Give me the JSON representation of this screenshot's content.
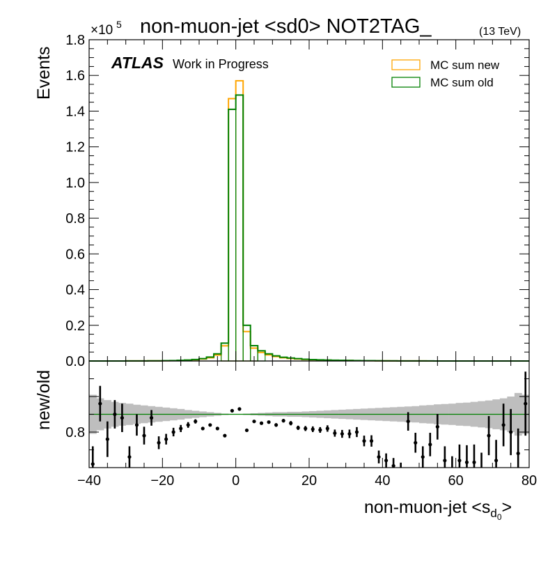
{
  "chart_data": [
    {
      "type": "step-histogram",
      "title": "non-muon-jet <sd0> NOT2TAG_",
      "title_suffix": "(13 TeV)",
      "experiment_label": "ATLAS",
      "experiment_sublabel": "Work in Progress",
      "ylabel": "Events",
      "y_multiplier": "×10",
      "y_multiplier_exponent": "5",
      "ylim": [
        0,
        1.8
      ],
      "y_ticks": [
        "0.0",
        "0.2",
        "0.4",
        "0.6",
        "0.8",
        "1.0",
        "1.2",
        "1.4",
        "1.6",
        "1.8"
      ],
      "xlim": [
        -40,
        80
      ],
      "legend_position": "top-right",
      "bin_edges": [
        -40,
        -38,
        -36,
        -34,
        -32,
        -30,
        -28,
        -26,
        -24,
        -22,
        -20,
        -18,
        -16,
        -14,
        -12,
        -10,
        -8,
        -6,
        -4,
        -2,
        0,
        2,
        4,
        6,
        8,
        10,
        12,
        14,
        16,
        18,
        20,
        22,
        24,
        26,
        28,
        30,
        32,
        34,
        36,
        38,
        40,
        42,
        44,
        46,
        48,
        50,
        52,
        54,
        56,
        58,
        60,
        62,
        64,
        66,
        68,
        70,
        72,
        74,
        76,
        78,
        80
      ],
      "series": [
        {
          "name": "MC sum new",
          "color": "#FFA500",
          "values": [
            0.0001,
            0.0001,
            0.0001,
            0.0002,
            0.0002,
            0.0003,
            0.0004,
            0.0005,
            0.0008,
            0.001,
            0.0014,
            0.002,
            0.003,
            0.0045,
            0.007,
            0.011,
            0.018,
            0.033,
            0.085,
            1.47,
            1.57,
            0.165,
            0.072,
            0.048,
            0.034,
            0.025,
            0.018,
            0.014,
            0.011,
            0.0085,
            0.0068,
            0.0055,
            0.0045,
            0.0038,
            0.0032,
            0.0027,
            0.0022,
            0.0018,
            0.0014,
            0.0011,
            0.0008,
            0.0006,
            0.0005,
            0.0004,
            0.0003,
            0.0003,
            0.0002,
            0.0002,
            0.0001,
            0.0001,
            0.0001,
            0.0001,
            0.0001,
            0.0001,
            0.0001,
            0.0001,
            0.0,
            0.0,
            0.0,
            0.0
          ]
        },
        {
          "name": "MC sum old",
          "color": "#008000",
          "values": [
            0.0001,
            0.0001,
            0.0001,
            0.0002,
            0.0002,
            0.0003,
            0.0005,
            0.0006,
            0.0009,
            0.0012,
            0.0017,
            0.0025,
            0.0037,
            0.0055,
            0.0085,
            0.013,
            0.022,
            0.04,
            0.1,
            1.41,
            1.49,
            0.2,
            0.086,
            0.057,
            0.04,
            0.029,
            0.021,
            0.0165,
            0.013,
            0.01,
            0.008,
            0.0065,
            0.0053,
            0.0045,
            0.0038,
            0.0032,
            0.0026,
            0.0021,
            0.0017,
            0.0014,
            0.001,
            0.0008,
            0.0006,
            0.0005,
            0.0004,
            0.0003,
            0.0003,
            0.0002,
            0.0002,
            0.0001,
            0.0001,
            0.0001,
            0.0001,
            0.0001,
            0.0001,
            0.0001,
            0.0,
            0.0,
            0.0,
            0.0
          ]
        }
      ]
    },
    {
      "type": "ratio",
      "ylabel": "new/old",
      "ylim": [
        0.7,
        1.0
      ],
      "y_ticks": [
        "0.8"
      ],
      "xlabel": "non-muon-jet <s",
      "xlabel_sub": "d",
      "xlabel_subsub": "0",
      "xlabel_suffix": ">",
      "x_ticks": [
        "−40",
        "−20",
        "0",
        "20",
        "40",
        "60",
        "80"
      ],
      "xlim": [
        -40,
        80
      ],
      "reference_line": 0.85,
      "reference_color": "#008000",
      "band_color": "#BEBEBE",
      "band_halfwidth": [
        0.055,
        0.045,
        0.04,
        0.035,
        0.032,
        0.03,
        0.027,
        0.025,
        0.023,
        0.021,
        0.019,
        0.017,
        0.015,
        0.012,
        0.01,
        0.008,
        0.006,
        0.004,
        0.002,
        0.001,
        0.001,
        0.002,
        0.003,
        0.004,
        0.005,
        0.006,
        0.006,
        0.007,
        0.007,
        0.008,
        0.009,
        0.01,
        0.011,
        0.012,
        0.013,
        0.014,
        0.015,
        0.016,
        0.017,
        0.018,
        0.019,
        0.02,
        0.021,
        0.022,
        0.023,
        0.025,
        0.026,
        0.028,
        0.029,
        0.03,
        0.032,
        0.033,
        0.035,
        0.037,
        0.039,
        0.042,
        0.045,
        0.05,
        0.06,
        0.055
      ],
      "points_x": [
        -39,
        -37,
        -35,
        -33,
        -31,
        -29,
        -27,
        -25,
        -23,
        -21,
        -19,
        -17,
        -15,
        -13,
        -11,
        -9,
        -7,
        -5,
        -3,
        -1,
        1,
        3,
        5,
        7,
        9,
        11,
        13,
        15,
        17,
        19,
        21,
        23,
        25,
        27,
        29,
        31,
        33,
        35,
        37,
        39,
        41,
        43,
        45,
        47,
        49,
        51,
        53,
        55,
        57,
        59,
        61,
        63,
        65,
        67,
        69,
        71,
        73,
        75,
        77,
        79
      ],
      "points_y": [
        0.71,
        0.88,
        0.78,
        0.85,
        0.84,
        0.73,
        0.82,
        0.79,
        0.84,
        0.77,
        0.78,
        0.8,
        0.81,
        0.82,
        0.83,
        0.81,
        0.82,
        0.81,
        0.79,
        0.86,
        0.865,
        0.805,
        0.83,
        0.825,
        0.828,
        0.82,
        0.832,
        0.825,
        0.812,
        0.81,
        0.808,
        0.806,
        0.81,
        0.797,
        0.795,
        0.795,
        0.8,
        0.775,
        0.775,
        0.73,
        0.72,
        0.705,
        0.69,
        0.83,
        0.77,
        0.73,
        0.765,
        0.815,
        0.72,
        0.69,
        0.72,
        0.715,
        0.715,
        0.69,
        0.79,
        0.72,
        0.82,
        0.8,
        0.74,
        0.88
      ],
      "points_err": [
        0.05,
        0.05,
        0.05,
        0.04,
        0.04,
        0.03,
        0.03,
        0.025,
        0.022,
        0.018,
        0.015,
        0.012,
        0.01,
        0.008,
        0.006,
        0.004,
        0.003,
        0.002,
        0.002,
        0.001,
        0.001,
        0.002,
        0.003,
        0.003,
        0.004,
        0.005,
        0.005,
        0.006,
        0.006,
        0.007,
        0.008,
        0.008,
        0.009,
        0.01,
        0.011,
        0.012,
        0.014,
        0.015,
        0.016,
        0.018,
        0.02,
        0.022,
        0.024,
        0.026,
        0.028,
        0.03,
        0.033,
        0.036,
        0.04,
        0.042,
        0.045,
        0.048,
        0.05,
        0.052,
        0.055,
        0.058,
        0.06,
        0.065,
        0.07,
        0.09
      ],
      "point_color": "#000000"
    }
  ]
}
